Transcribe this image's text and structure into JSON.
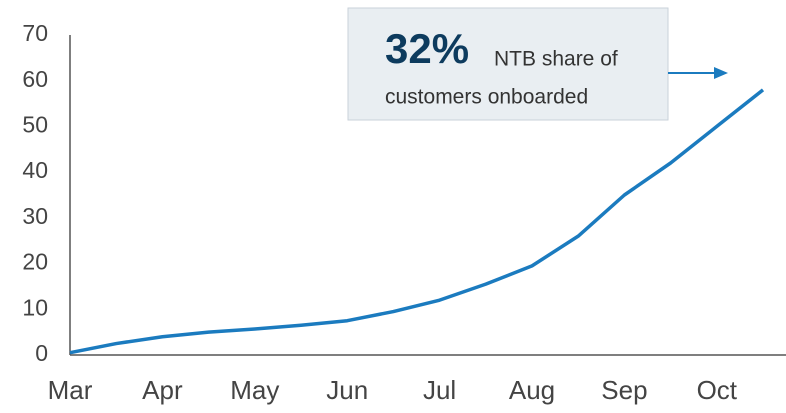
{
  "chart_data": {
    "type": "line",
    "categories": [
      "Mar",
      null,
      "Apr",
      null,
      "May",
      null,
      "Jun",
      null,
      "Jul",
      null,
      "Aug",
      null,
      "Sep",
      null,
      "Oct",
      null
    ],
    "series": [
      {
        "color": "#1b7bbf",
        "values": [
          0.5,
          2.5,
          4,
          5,
          5.7,
          6.5,
          7.5,
          9.5,
          12,
          15.5,
          19.5,
          26,
          35,
          42,
          50,
          58
        ]
      }
    ],
    "ylim": [
      0,
      70
    ],
    "yticks": [
      0,
      10,
      20,
      30,
      40,
      50,
      60,
      70
    ],
    "annotation": {
      "highlight": "32%",
      "line1": "NTB share of",
      "line2": "customers onboarded"
    }
  }
}
